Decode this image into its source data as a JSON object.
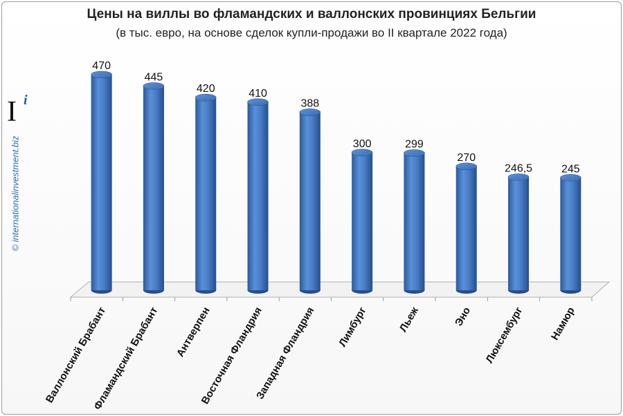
{
  "title": "Цены на виллы во фламандских и валлонских провинциях Бельгии",
  "subtitle": "(в тыс. евро, на основе сделок купли-продажи во II квартале 2022 года)",
  "watermark": "© internationalinvestment.biz",
  "logo": {
    "letter": "I",
    "superscript": "i"
  },
  "chart_data": {
    "type": "bar",
    "style": "3d-cylinder",
    "bar_color": "#4a7fc8",
    "grid": false,
    "legend": "none",
    "title": "Цены на виллы во фламандских и валлонских провинциях Бельгии",
    "subtitle": "(в тыс. евро, на основе сделок купли-продажи во II квартале 2022 года)",
    "xlabel": "",
    "ylabel": "",
    "ylim": [
      0,
      500
    ],
    "categories": [
      "Валлонский Брабант",
      "Фламандский Брабант",
      "Антверпен",
      "Восточная Фландрия",
      "Западная Фландрия",
      "Лимбург",
      "Льеж",
      "Эно",
      "Люксембург",
      "Намюр"
    ],
    "values": [
      470,
      445,
      420,
      410,
      388,
      300,
      299,
      270,
      246.5,
      245
    ],
    "value_labels": [
      "470",
      "445",
      "420",
      "410",
      "388",
      "300",
      "299",
      "270",
      "246,5",
      "245"
    ]
  }
}
